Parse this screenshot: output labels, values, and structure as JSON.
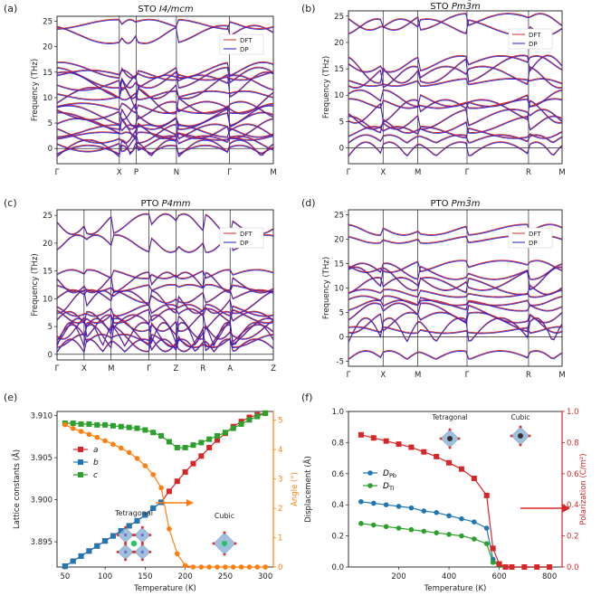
{
  "figure": {
    "panels": [
      {
        "key": "a",
        "label": "(a)",
        "title": "STO",
        "title_italic": "I4/mcm"
      },
      {
        "key": "b",
        "label": "(b)",
        "title": "STO",
        "title_italic": "Pm3̄m"
      },
      {
        "key": "c",
        "label": "(c)",
        "title": "PTO",
        "title_italic": "P4mm"
      },
      {
        "key": "d",
        "label": "(d)",
        "title": "PTO",
        "title_italic": "Pm3̄m"
      },
      {
        "key": "e",
        "label": "(e)"
      },
      {
        "key": "f",
        "label": "(f)"
      }
    ],
    "legend_dft": "DFT",
    "legend_dp": "DP",
    "colors": {
      "dft": "#d62728",
      "dp": "#1f1fd6",
      "lattice_a": "#d62728",
      "lattice_b": "#1f77b4",
      "lattice_c": "#2ca02c",
      "angle": "#ff7f0e",
      "d_pb": "#1f77b4",
      "d_ti": "#2ca02c",
      "polarization": "#d62728"
    }
  },
  "chart_data": [
    {
      "panel": "a",
      "type": "line",
      "title": "STO I4/mcm",
      "ylabel": "Frequency (THz)",
      "ylim": [
        -3,
        26
      ],
      "yticks": [
        0,
        5,
        10,
        15,
        20,
        25
      ],
      "kpoints": [
        "Γ",
        "X",
        "P",
        "N",
        "Γ",
        "M"
      ],
      "kpos": [
        0,
        0.288,
        0.366,
        0.552,
        0.797,
        1.0
      ],
      "reference_bands": [
        -1.5,
        -1.0,
        1.0,
        2.5,
        3.0,
        3.5,
        4.0,
        5.5,
        6.5,
        7.5,
        8.0,
        9.5,
        10.5,
        12.5,
        13.0,
        14.0,
        14.5,
        15.5,
        22.5,
        24.5
      ]
    },
    {
      "panel": "b",
      "type": "line",
      "title": "STO Pm3̄m",
      "ylabel": "Frequency (THz)",
      "ylim": [
        -3,
        26
      ],
      "yticks": [
        0,
        5,
        10,
        15,
        20,
        25
      ],
      "kpoints": [
        "Γ",
        "X",
        "M",
        "Γ",
        "R",
        "M"
      ],
      "kpos": [
        0,
        0.162,
        0.325,
        0.555,
        0.843,
        1.0
      ],
      "reference_bands": [
        -1.5,
        1.0,
        3.0,
        4.5,
        5.5,
        7.0,
        8.5,
        9.5,
        12.5,
        13.5,
        15.0,
        16.0,
        23.0,
        24.0
      ]
    },
    {
      "panel": "c",
      "type": "line",
      "title": "PTO P4mm",
      "ylabel": "Frequency (THz)",
      "ylim": [
        -1,
        26
      ],
      "yticks": [
        0,
        5,
        10,
        15,
        20,
        25
      ],
      "kpoints": [
        "Γ",
        "X",
        "M",
        "Γ",
        "Z",
        "R",
        "A",
        "Z"
      ],
      "kpos": [
        0,
        0.125,
        0.25,
        0.425,
        0.55,
        0.675,
        0.8,
        1.0
      ],
      "reference_bands": [
        0.5,
        1.5,
        2.5,
        3.0,
        4.0,
        5.0,
        6.0,
        7.0,
        8.0,
        9.5,
        10.5,
        12.0,
        13.0,
        14.5,
        20.0,
        23.5
      ]
    },
    {
      "panel": "d",
      "type": "line",
      "title": "PTO Pm3̄m",
      "ylabel": "Frequency (THz)",
      "ylim": [
        -6,
        26
      ],
      "yticks": [
        -5,
        0,
        5,
        10,
        15,
        20,
        25
      ],
      "kpoints": [
        "Γ",
        "X",
        "M",
        "Γ",
        "R",
        "M"
      ],
      "kpos": [
        0,
        0.162,
        0.325,
        0.555,
        0.843,
        1.0
      ],
      "reference_bands": [
        -4.5,
        -1.0,
        1.5,
        3.0,
        5.0,
        6.5,
        7.5,
        9.0,
        10.5,
        12.0,
        13.5,
        14.5,
        20.0,
        22.0
      ]
    },
    {
      "panel": "e",
      "type": "line",
      "xlabel": "Temperature (K)",
      "ylabel": "Lattice constants (Å)",
      "ylabel_right": "Angle (°)",
      "xlim": [
        40,
        310
      ],
      "xticks": [
        50,
        100,
        150,
        200,
        250,
        300
      ],
      "ylim": [
        3.892,
        3.9105
      ],
      "yticks": [
        3.895,
        3.9,
        3.905,
        3.91
      ],
      "ylim_right": [
        0,
        5.3
      ],
      "yticks_right": [
        0,
        1,
        2,
        3,
        4,
        5
      ],
      "series": [
        {
          "name": "a",
          "x": [
            50,
            60,
            70,
            80,
            90,
            100,
            110,
            120,
            130,
            140,
            150,
            160,
            170,
            180,
            190,
            200,
            210,
            220,
            230,
            240,
            250,
            260,
            270,
            280,
            290,
            300
          ],
          "values": [
            3.8921,
            3.8927,
            3.8933,
            3.8939,
            3.8945,
            3.8951,
            3.8957,
            3.8963,
            3.8969,
            3.8975,
            3.8982,
            3.899,
            3.8997,
            3.901,
            3.9022,
            3.9033,
            3.9043,
            3.9052,
            3.9062,
            3.9071,
            3.9079,
            3.9087,
            3.9093,
            3.9098,
            3.9101,
            3.9103
          ]
        },
        {
          "name": "b",
          "x": [
            50,
            60,
            70,
            80,
            90,
            100,
            110,
            120,
            130,
            140,
            150,
            160,
            170
          ],
          "values": [
            3.8921,
            3.8927,
            3.8933,
            3.8939,
            3.8945,
            3.8951,
            3.8957,
            3.8963,
            3.8969,
            3.8975,
            3.8982,
            3.899,
            3.8997
          ]
        },
        {
          "name": "c",
          "x": [
            50,
            60,
            70,
            80,
            90,
            100,
            110,
            120,
            130,
            140,
            150,
            160,
            170,
            180,
            190,
            200,
            210,
            220,
            230,
            240,
            250,
            260,
            270,
            280,
            290,
            300
          ],
          "values": [
            3.9091,
            3.9091,
            3.909,
            3.909,
            3.9089,
            3.9089,
            3.9088,
            3.9087,
            3.9086,
            3.9085,
            3.9083,
            3.908,
            3.9076,
            3.9069,
            3.9062,
            3.9062,
            3.9065,
            3.9068,
            3.9072,
            3.9076,
            3.908,
            3.9085,
            3.909,
            3.9095,
            3.9099,
            3.9103
          ]
        },
        {
          "name": "Angle",
          "axis": "right",
          "x": [
            50,
            60,
            70,
            80,
            90,
            100,
            110,
            120,
            130,
            140,
            150,
            160,
            170,
            180,
            190,
            200,
            210,
            220,
            230,
            240,
            250,
            260,
            270,
            280,
            290,
            300
          ],
          "values": [
            4.85,
            4.72,
            4.62,
            4.52,
            4.42,
            4.3,
            4.18,
            4.05,
            3.9,
            3.7,
            3.45,
            3.15,
            2.7,
            1.3,
            0.45,
            0.05,
            0,
            0,
            0,
            0,
            0,
            0,
            0,
            0,
            0,
            0
          ]
        }
      ],
      "legend": [
        "a",
        "b",
        "c"
      ],
      "annotations": [
        "Tetragonal",
        "Cubic"
      ]
    },
    {
      "panel": "f",
      "type": "line",
      "xlabel": "Temperature (K)",
      "ylabel": "Displacement (Å)",
      "ylabel_right": "Polarization (C/m²)",
      "xlim": [
        0,
        850
      ],
      "xticks": [
        200,
        400,
        600,
        800
      ],
      "ylim": [
        0,
        1.0
      ],
      "yticks": [
        0.0,
        0.2,
        0.4,
        0.6,
        0.8,
        1.0
      ],
      "ylim_right": [
        0,
        1.0
      ],
      "yticks_right": [
        0.0,
        0.2,
        0.4,
        0.6,
        0.8,
        1.0
      ],
      "series": [
        {
          "name": "D_Pb",
          "x": [
            50,
            100,
            150,
            200,
            250,
            300,
            350,
            400,
            450,
            500,
            550,
            575,
            600,
            625,
            650,
            700,
            750,
            800
          ],
          "values": [
            0.42,
            0.41,
            0.4,
            0.39,
            0.38,
            0.36,
            0.35,
            0.33,
            0.31,
            0.29,
            0.25,
            0.05,
            0.01,
            0,
            0,
            0,
            0,
            0
          ]
        },
        {
          "name": "D_Ti",
          "x": [
            50,
            100,
            150,
            200,
            250,
            300,
            350,
            400,
            450,
            500,
            550,
            575,
            600,
            625,
            650,
            700,
            750,
            800
          ],
          "values": [
            0.28,
            0.27,
            0.26,
            0.25,
            0.24,
            0.23,
            0.22,
            0.21,
            0.2,
            0.18,
            0.15,
            0.03,
            0.01,
            0,
            0,
            0,
            0,
            0
          ]
        },
        {
          "name": "Polarization",
          "axis": "right",
          "x": [
            50,
            100,
            150,
            200,
            250,
            300,
            350,
            400,
            450,
            500,
            550,
            575,
            600,
            625,
            650,
            700,
            750,
            800
          ],
          "values": [
            0.85,
            0.83,
            0.81,
            0.79,
            0.77,
            0.74,
            0.71,
            0.67,
            0.63,
            0.57,
            0.46,
            0.12,
            0.02,
            0,
            0,
            0,
            0,
            0
          ]
        }
      ],
      "legend": [
        "D_Pb",
        "D_Ti"
      ],
      "annotations": [
        "Tetragonal",
        "Cubic"
      ]
    }
  ]
}
